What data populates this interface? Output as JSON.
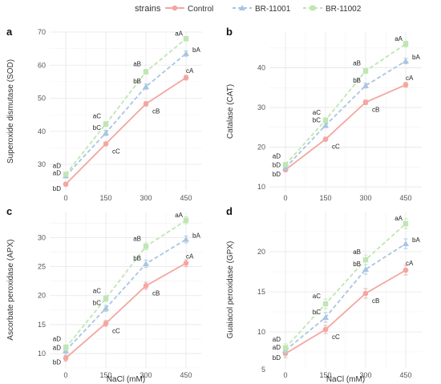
{
  "legend": {
    "title": "strains",
    "items": [
      {
        "name": "Control",
        "color": "#f4a6a0",
        "dash": "solid",
        "marker": "circle"
      },
      {
        "name": "BR-11001",
        "color": "#a9c6e0",
        "dash": "dashed",
        "marker": "triangle"
      },
      {
        "name": "BR-11002",
        "color": "#bfe6b4",
        "dash": "dashed",
        "marker": "square"
      }
    ]
  },
  "chart_data": [
    {
      "type": "line",
      "panel": "a",
      "ylabel": "Superoxide dismutase (SOD)",
      "xlabel": "",
      "x": [
        0,
        150,
        300,
        450
      ],
      "xticks": [
        "0",
        "150",
        "300",
        "450"
      ],
      "ylim": [
        22,
        70
      ],
      "yticks": [
        30,
        40,
        50,
        60,
        70
      ],
      "series": [
        {
          "name": "Control",
          "values": [
            24.0,
            36.2,
            48.3,
            56.2
          ],
          "errors": [
            0.6,
            0.6,
            0.7,
            0.7
          ],
          "labels": [
            "bD",
            "cC",
            "cB",
            "cA"
          ]
        },
        {
          "name": "BR-11001",
          "values": [
            26.5,
            39.5,
            53.5,
            63.5
          ],
          "errors": [
            0.6,
            0.8,
            0.8,
            0.8
          ],
          "labels": [
            "aD",
            "bC",
            "bB",
            "bA"
          ]
        },
        {
          "name": "BR-11002",
          "values": [
            27.0,
            42.2,
            58.0,
            68.0
          ],
          "errors": [
            0.6,
            0.7,
            0.7,
            0.7
          ],
          "labels": [
            "aD",
            "aC",
            "aB",
            "aA"
          ]
        }
      ]
    },
    {
      "type": "line",
      "panel": "b",
      "ylabel": "Catalase (CAT)",
      "xlabel": "",
      "x": [
        0,
        150,
        300,
        450
      ],
      "xticks": [
        "0",
        "150",
        "300",
        "450"
      ],
      "ylim": [
        9,
        49
      ],
      "yticks": [
        10,
        20,
        30,
        40
      ],
      "series": [
        {
          "name": "Control",
          "values": [
            14.3,
            22.0,
            31.3,
            35.7
          ],
          "errors": [
            0.5,
            0.5,
            0.6,
            0.6
          ],
          "labels": [
            "bD",
            "cC",
            "cB",
            "cA"
          ]
        },
        {
          "name": "BR-11001",
          "values": [
            14.8,
            25.5,
            35.5,
            41.7
          ],
          "errors": [
            0.5,
            0.6,
            0.6,
            0.7
          ],
          "labels": [
            "bD",
            "bC",
            "bB",
            "bA"
          ]
        },
        {
          "name": "BR-11002",
          "values": [
            15.6,
            26.8,
            39.2,
            46.0
          ],
          "errors": [
            0.5,
            0.6,
            0.6,
            0.7
          ],
          "labels": [
            "aD",
            "aC",
            "aB",
            "aA"
          ]
        }
      ]
    },
    {
      "type": "line",
      "panel": "c",
      "ylabel": "Ascorbate peroxidase (APX)",
      "xlabel": "NaCl (mM)",
      "x": [
        0,
        150,
        300,
        450
      ],
      "xticks": [
        "0",
        "150",
        "300",
        "450"
      ],
      "ylim": [
        7.5,
        34.5
      ],
      "yticks": [
        10,
        15,
        20,
        25,
        30
      ],
      "series": [
        {
          "name": "Control",
          "values": [
            9.2,
            15.2,
            21.7,
            25.6
          ],
          "errors": [
            0.5,
            0.5,
            0.6,
            0.6
          ],
          "labels": [
            "bD",
            "cC",
            "cB",
            "cA"
          ]
        },
        {
          "name": "BR-11001",
          "values": [
            10.5,
            17.8,
            25.5,
            29.7
          ],
          "errors": [
            0.5,
            0.5,
            0.6,
            0.6
          ],
          "labels": [
            "aD",
            "bC",
            "bB",
            "bA"
          ]
        },
        {
          "name": "BR-11002",
          "values": [
            11.0,
            19.5,
            28.5,
            33.0
          ],
          "errors": [
            0.5,
            0.5,
            0.6,
            0.6
          ],
          "labels": [
            "aD",
            "aC",
            "aB",
            "aA"
          ]
        }
      ]
    },
    {
      "type": "line",
      "panel": "d",
      "ylabel": "Guaiacol peroxidase (GPX)",
      "xlabel": "NaCl (mM)",
      "x": [
        0,
        150,
        300,
        450
      ],
      "xticks": [
        "0",
        "150",
        "300",
        "450"
      ],
      "ylim": [
        5.5,
        25
      ],
      "yticks": [
        5,
        10,
        15,
        20
      ],
      "series": [
        {
          "name": "Control",
          "values": [
            7.3,
            10.3,
            14.8,
            17.7
          ],
          "errors": [
            0.5,
            0.5,
            0.6,
            0.6
          ],
          "labels": [
            "bD",
            "cC",
            "cB",
            "cA"
          ]
        },
        {
          "name": "BR-11001",
          "values": [
            7.7,
            11.8,
            17.8,
            21.0
          ],
          "errors": [
            0.5,
            0.6,
            0.6,
            0.6
          ],
          "labels": [
            "aD",
            "bC",
            "bB",
            "bA"
          ]
        },
        {
          "name": "BR-11002",
          "values": [
            8.0,
            13.5,
            19.0,
            23.5
          ],
          "errors": [
            0.5,
            0.6,
            0.6,
            0.6
          ],
          "labels": [
            "aD",
            "aC",
            "aB",
            "aA"
          ]
        }
      ]
    }
  ]
}
